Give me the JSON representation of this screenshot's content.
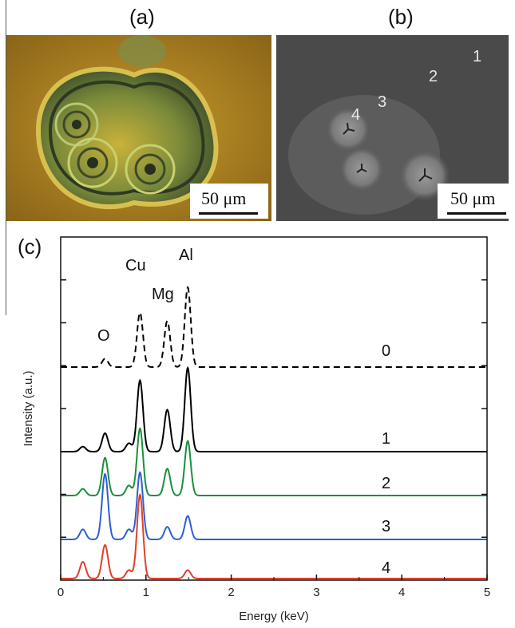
{
  "panels": {
    "a": {
      "label": "(a)",
      "scale_bar": "50 μm"
    },
    "b": {
      "label": "(b)",
      "scale_bar": "50 μm",
      "point_labels": [
        "1",
        "2",
        "3",
        "4"
      ]
    },
    "c": {
      "label": "(c)"
    }
  },
  "chart_data": {
    "type": "line",
    "xlabel": "Energy (keV)",
    "ylabel": "Intensity (a.u.)",
    "xlim": [
      0,
      5
    ],
    "x_ticks": [
      "0",
      "1",
      "2",
      "3",
      "4",
      "5"
    ],
    "element_labels": [
      "O",
      "Cu",
      "Mg",
      "Al"
    ],
    "element_positions_keV": [
      0.52,
      0.93,
      1.25,
      1.49
    ],
    "series": [
      {
        "name": "0",
        "color": "#000000",
        "dashed": true,
        "peaks": [
          {
            "x": 0.52,
            "height": 0.1
          },
          {
            "x": 0.93,
            "height": 0.65
          },
          {
            "x": 1.25,
            "height": 0.55
          },
          {
            "x": 1.49,
            "height": 0.95
          }
        ]
      },
      {
        "name": "1",
        "color": "#000000",
        "dashed": false,
        "peaks": [
          {
            "x": 0.26,
            "height": 0.06
          },
          {
            "x": 0.52,
            "height": 0.22
          },
          {
            "x": 0.8,
            "height": 0.1
          },
          {
            "x": 0.93,
            "height": 0.85
          },
          {
            "x": 1.25,
            "height": 0.5
          },
          {
            "x": 1.49,
            "height": 1.0
          }
        ]
      },
      {
        "name": "2",
        "color": "#1a8f3c",
        "dashed": false,
        "peaks": [
          {
            "x": 0.26,
            "height": 0.08
          },
          {
            "x": 0.52,
            "height": 0.45
          },
          {
            "x": 0.8,
            "height": 0.12
          },
          {
            "x": 0.93,
            "height": 0.8
          },
          {
            "x": 1.25,
            "height": 0.32
          },
          {
            "x": 1.49,
            "height": 0.65
          }
        ]
      },
      {
        "name": "3",
        "color": "#2d5fd3",
        "dashed": false,
        "peaks": [
          {
            "x": 0.26,
            "height": 0.12
          },
          {
            "x": 0.52,
            "height": 0.78
          },
          {
            "x": 0.8,
            "height": 0.12
          },
          {
            "x": 0.93,
            "height": 0.8
          },
          {
            "x": 1.25,
            "height": 0.15
          },
          {
            "x": 1.49,
            "height": 0.28
          }
        ]
      },
      {
        "name": "4",
        "color": "#e0402a",
        "dashed": false,
        "peaks": [
          {
            "x": 0.26,
            "height": 0.2
          },
          {
            "x": 0.52,
            "height": 0.4
          },
          {
            "x": 0.8,
            "height": 0.1
          },
          {
            "x": 0.93,
            "height": 1.0
          },
          {
            "x": 1.49,
            "height": 0.1
          }
        ]
      }
    ]
  }
}
